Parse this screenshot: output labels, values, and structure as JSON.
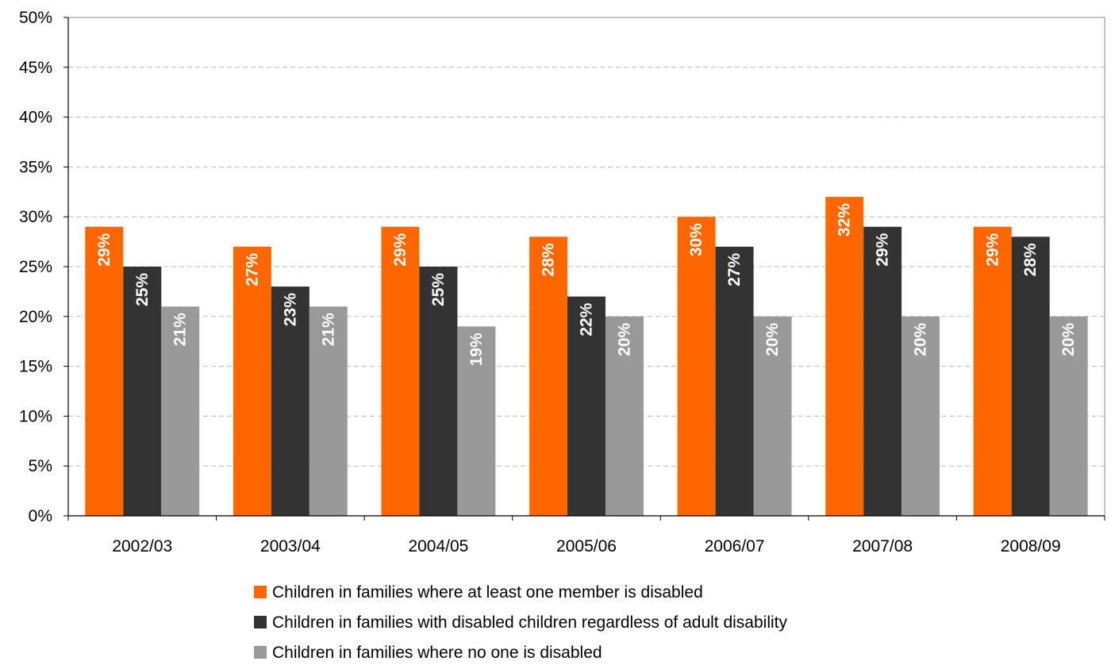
{
  "chart_data": {
    "type": "bar",
    "categories": [
      "2002/03",
      "2003/04",
      "2004/05",
      "2005/06",
      "2006/07",
      "2007/08",
      "2008/09"
    ],
    "series": [
      {
        "name": "Children in families where at least one member is disabled",
        "color": "#ff6600",
        "values": [
          29,
          27,
          29,
          28,
          30,
          32,
          29
        ]
      },
      {
        "name": "Children in families with disabled children regardless of adult disability",
        "color": "#333333",
        "values": [
          25,
          23,
          25,
          22,
          27,
          29,
          28
        ]
      },
      {
        "name": "Children in families where no one is disabled",
        "color": "#999999",
        "values": [
          21,
          21,
          19,
          20,
          20,
          20,
          20
        ]
      }
    ],
    "ylim": [
      0,
      50
    ],
    "yticks": [
      0,
      5,
      10,
      15,
      20,
      25,
      30,
      35,
      40,
      45,
      50
    ],
    "ytick_format": "percent",
    "data_label_format": "percent",
    "grid": "horizontal dashed",
    "legend_position": "bottom",
    "title": "",
    "xlabel": "",
    "ylabel": ""
  }
}
